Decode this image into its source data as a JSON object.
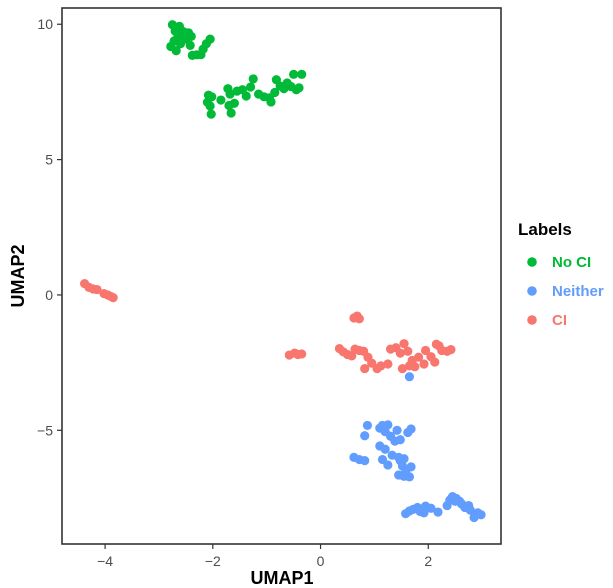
{
  "chart_data": {
    "type": "scatter",
    "title": "",
    "xlabel": "UMAP1",
    "ylabel": "UMAP2",
    "xlim": [
      -4.8,
      3.35
    ],
    "ylim": [
      -9.2,
      10.6
    ],
    "xticks": [
      -4,
      -2,
      0,
      2
    ],
    "yticks": [
      -5,
      0,
      5,
      10
    ],
    "x_tick_labels": [
      "−4",
      "−2",
      "0",
      "2"
    ],
    "y_tick_labels": [
      "−5",
      "0",
      "5",
      "10"
    ],
    "grid": false,
    "legend": {
      "title": "Labels",
      "placement": "right"
    },
    "series": [
      {
        "name": "No CI",
        "color": "#00BA38",
        "points": [
          [
            -2.75,
            9.98
          ],
          [
            -2.62,
            9.92
          ],
          [
            -2.7,
            9.75
          ],
          [
            -2.55,
            9.73
          ],
          [
            -2.45,
            9.68
          ],
          [
            -2.4,
            9.55
          ],
          [
            -2.65,
            9.52
          ],
          [
            -2.5,
            9.45
          ],
          [
            -2.72,
            9.38
          ],
          [
            -2.6,
            9.28
          ],
          [
            -2.42,
            9.22
          ],
          [
            -2.78,
            9.18
          ],
          [
            -2.68,
            9.02
          ],
          [
            -2.05,
            9.45
          ],
          [
            -2.12,
            9.28
          ],
          [
            -2.18,
            9.08
          ],
          [
            -2.3,
            8.87
          ],
          [
            -2.38,
            8.85
          ],
          [
            -2.22,
            8.88
          ],
          [
            -2.08,
            7.38
          ],
          [
            -2.02,
            7.32
          ],
          [
            -2.1,
            7.12
          ],
          [
            -2.05,
            6.98
          ],
          [
            -2.03,
            6.68
          ],
          [
            -1.85,
            7.2
          ],
          [
            -1.72,
            7.62
          ],
          [
            -1.68,
            7.42
          ],
          [
            -1.6,
            7.08
          ],
          [
            -1.7,
            7.0
          ],
          [
            -1.66,
            6.72
          ],
          [
            -1.55,
            7.53
          ],
          [
            -1.45,
            7.58
          ],
          [
            -1.38,
            7.35
          ],
          [
            -1.3,
            7.68
          ],
          [
            -1.25,
            7.98
          ],
          [
            -1.15,
            7.42
          ],
          [
            -1.05,
            7.32
          ],
          [
            -0.95,
            7.28
          ],
          [
            -0.92,
            7.13
          ],
          [
            -0.85,
            7.48
          ],
          [
            -0.82,
            7.95
          ],
          [
            -0.75,
            7.72
          ],
          [
            -0.68,
            7.62
          ],
          [
            -0.62,
            7.83
          ],
          [
            -0.55,
            7.7
          ],
          [
            -0.5,
            8.15
          ],
          [
            -0.45,
            7.58
          ],
          [
            -0.4,
            7.65
          ],
          [
            -0.35,
            8.15
          ]
        ]
      },
      {
        "name": "Neither",
        "color": "#619CFF",
        "points": [
          [
            0.87,
            -4.82
          ],
          [
            0.82,
            -5.2
          ],
          [
            1.1,
            -4.92
          ],
          [
            1.15,
            -4.82
          ],
          [
            1.25,
            -4.8
          ],
          [
            1.2,
            -5.05
          ],
          [
            1.3,
            -5.22
          ],
          [
            1.42,
            -5.0
          ],
          [
            1.38,
            -5.4
          ],
          [
            1.48,
            -5.35
          ],
          [
            1.62,
            -5.08
          ],
          [
            1.68,
            -4.95
          ],
          [
            1.1,
            -5.58
          ],
          [
            1.2,
            -5.7
          ],
          [
            1.33,
            -5.92
          ],
          [
            1.45,
            -6.0
          ],
          [
            1.55,
            -6.05
          ],
          [
            1.48,
            -6.12
          ],
          [
            1.15,
            -6.08
          ],
          [
            1.25,
            -6.28
          ],
          [
            1.52,
            -6.32
          ],
          [
            1.68,
            -6.35
          ],
          [
            1.58,
            -6.55
          ],
          [
            1.45,
            -6.65
          ],
          [
            1.55,
            -6.7
          ],
          [
            1.65,
            -6.72
          ],
          [
            0.62,
            -6.0
          ],
          [
            0.72,
            -6.08
          ],
          [
            0.82,
            -6.12
          ],
          [
            1.65,
            -3.02
          ],
          [
            1.58,
            -8.08
          ],
          [
            1.65,
            -7.98
          ],
          [
            1.72,
            -7.92
          ],
          [
            1.8,
            -7.85
          ],
          [
            1.85,
            -8.0
          ],
          [
            1.92,
            -8.05
          ],
          [
            1.95,
            -7.8
          ],
          [
            2.05,
            -7.88
          ],
          [
            2.18,
            -8.02
          ],
          [
            2.35,
            -7.78
          ],
          [
            2.4,
            -7.58
          ],
          [
            2.45,
            -7.45
          ],
          [
            2.52,
            -7.52
          ],
          [
            2.58,
            -7.62
          ],
          [
            2.62,
            -7.72
          ],
          [
            2.68,
            -7.85
          ],
          [
            2.75,
            -7.78
          ],
          [
            2.78,
            -7.95
          ],
          [
            2.85,
            -8.22
          ],
          [
            2.92,
            -8.05
          ],
          [
            2.98,
            -8.12
          ],
          [
            2.5,
            -7.62
          ]
        ]
      },
      {
        "name": "CI",
        "color": "#F8766D",
        "points": [
          [
            -4.38,
            0.42
          ],
          [
            -4.3,
            0.28
          ],
          [
            -4.22,
            0.22
          ],
          [
            -4.15,
            0.2
          ],
          [
            -4.02,
            0.05
          ],
          [
            -3.95,
            0.0
          ],
          [
            -3.9,
            -0.05
          ],
          [
            -3.85,
            -0.1
          ],
          [
            -0.58,
            -2.22
          ],
          [
            -0.48,
            -2.15
          ],
          [
            -0.42,
            -2.2
          ],
          [
            -0.35,
            -2.18
          ],
          [
            0.62,
            -0.85
          ],
          [
            0.68,
            -0.78
          ],
          [
            0.72,
            -0.88
          ],
          [
            0.35,
            -1.98
          ],
          [
            0.42,
            -2.1
          ],
          [
            0.5,
            -2.2
          ],
          [
            0.58,
            -2.25
          ],
          [
            0.64,
            -2.0
          ],
          [
            0.72,
            -2.05
          ],
          [
            0.8,
            -2.08
          ],
          [
            0.88,
            -2.3
          ],
          [
            0.95,
            -2.52
          ],
          [
            1.05,
            -2.72
          ],
          [
            0.82,
            -2.72
          ],
          [
            1.12,
            -2.62
          ],
          [
            1.25,
            -2.55
          ],
          [
            1.3,
            -2.0
          ],
          [
            1.4,
            -1.95
          ],
          [
            1.48,
            -2.15
          ],
          [
            1.55,
            -1.8
          ],
          [
            1.62,
            -2.08
          ],
          [
            1.7,
            -2.42
          ],
          [
            1.52,
            -2.72
          ],
          [
            1.65,
            -2.62
          ],
          [
            1.75,
            -2.65
          ],
          [
            1.82,
            -2.3
          ],
          [
            1.95,
            -2.05
          ],
          [
            2.05,
            -2.28
          ],
          [
            2.12,
            -2.48
          ],
          [
            2.15,
            -1.82
          ],
          [
            2.2,
            -1.88
          ],
          [
            2.25,
            -2.05
          ],
          [
            2.35,
            -2.08
          ],
          [
            2.42,
            -2.02
          ],
          [
            1.92,
            -2.55
          ]
        ]
      }
    ]
  }
}
